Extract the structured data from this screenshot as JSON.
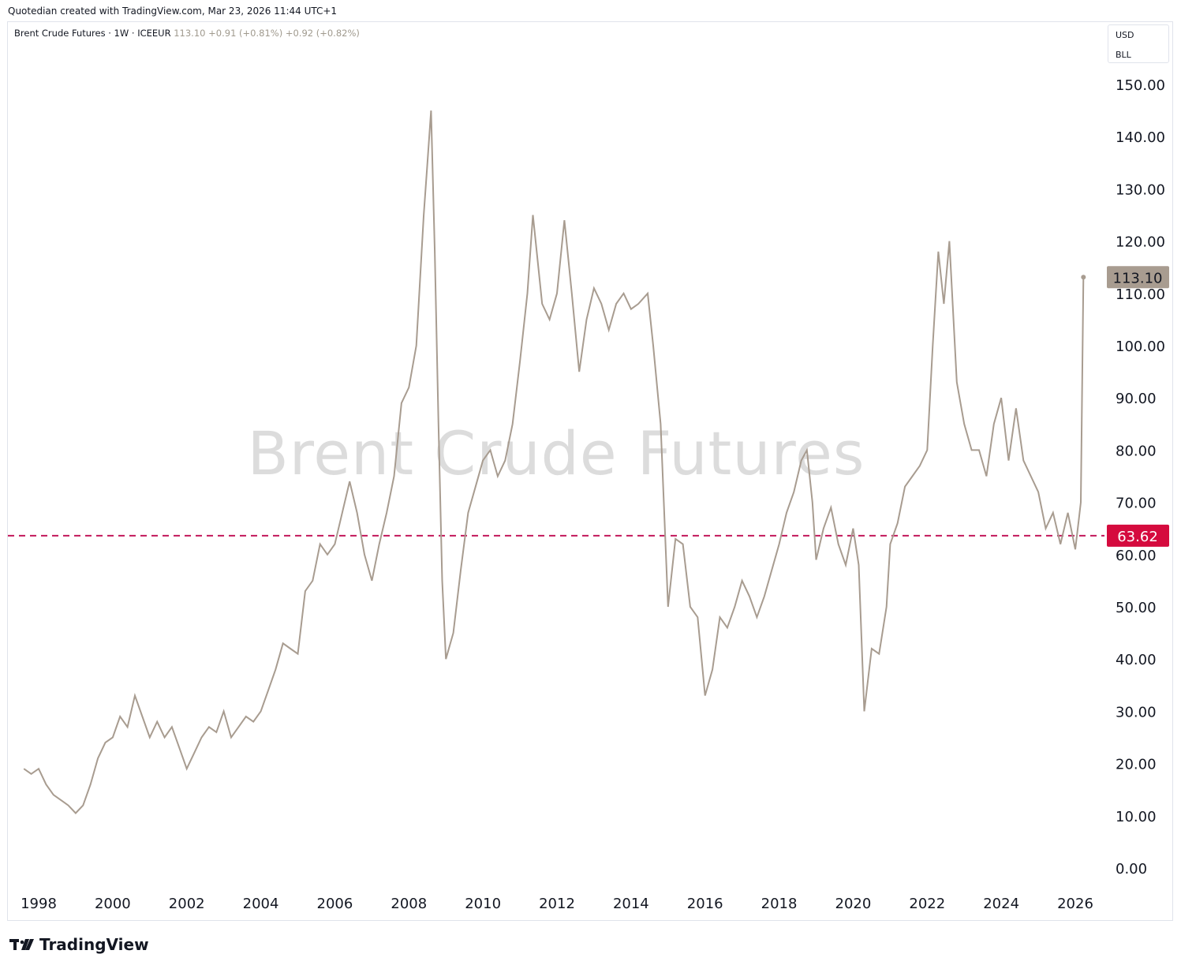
{
  "header": {
    "credit": "Quotedian created with TradingView.com, Mar 23, 2026 11:44 UTC+1"
  },
  "legend": {
    "symbol": "Brent Crude Futures · 1W · ICEEUR",
    "last": "113.10",
    "change1": "+0.91 (+0.81%)",
    "change2": "+0.92 (+0.82%)"
  },
  "units": {
    "currency": "USD",
    "unit": "BLL"
  },
  "watermark": "Brent Crude Futures",
  "brand": {
    "name": "TradingView"
  },
  "colors": {
    "line": "#a89c90",
    "hline": "#c2185b",
    "last_tag": "#a89c90",
    "hline_tag": "#d50b3e"
  },
  "chart_data": {
    "type": "line",
    "series": [
      {
        "x": [
          1997.6,
          1997.8,
          1998.0,
          1998.2,
          1998.4,
          1998.6,
          1998.8,
          1999.0,
          1999.2,
          1999.4,
          1999.6,
          1999.8,
          2000.0,
          2000.2,
          2000.4,
          2000.6,
          2000.8,
          2001.0,
          2001.2,
          2001.4,
          2001.6,
          2001.8,
          2002.0,
          2002.2,
          2002.4,
          2002.6,
          2002.8,
          2003.0,
          2003.2,
          2003.4,
          2003.6,
          2003.8,
          2004.0,
          2004.2,
          2004.4,
          2004.6,
          2004.8,
          2005.0,
          2005.2,
          2005.4,
          2005.6,
          2005.8,
          2006.0,
          2006.2,
          2006.4,
          2006.6,
          2006.8,
          2007.0,
          2007.2,
          2007.4,
          2007.6,
          2007.8,
          2008.0,
          2008.2,
          2008.4,
          2008.5,
          2008.6,
          2008.7,
          2008.8,
          2008.9,
          2009.0,
          2009.2,
          2009.4,
          2009.6,
          2009.8,
          2010.0,
          2010.2,
          2010.4,
          2010.6,
          2010.8,
          2011.0,
          2011.2,
          2011.35,
          2011.6,
          2011.8,
          2012.0,
          2012.2,
          2012.4,
          2012.6,
          2012.8,
          2013.0,
          2013.2,
          2013.4,
          2013.6,
          2013.8,
          2014.0,
          2014.2,
          2014.45,
          2014.6,
          2014.8,
          2015.0,
          2015.2,
          2015.4,
          2015.6,
          2015.8,
          2016.0,
          2016.2,
          2016.4,
          2016.6,
          2016.8,
          2017.0,
          2017.2,
          2017.4,
          2017.6,
          2017.8,
          2018.0,
          2018.2,
          2018.4,
          2018.6,
          2018.75,
          2018.9,
          2019.0,
          2019.2,
          2019.4,
          2019.6,
          2019.8,
          2020.0,
          2020.15,
          2020.3,
          2020.5,
          2020.7,
          2020.9,
          2021.0,
          2021.2,
          2021.4,
          2021.6,
          2021.8,
          2022.0,
          2022.15,
          2022.3,
          2022.45,
          2022.6,
          2022.8,
          2023.0,
          2023.2,
          2023.4,
          2023.6,
          2023.8,
          2024.0,
          2024.2,
          2024.4,
          2024.6,
          2024.8,
          2025.0,
          2025.2,
          2025.4,
          2025.6,
          2025.8,
          2026.0,
          2026.1,
          2026.15,
          2026.22
        ],
        "y": [
          19,
          18,
          19,
          16,
          14,
          13,
          12,
          10.5,
          12,
          16,
          21,
          24,
          25,
          29,
          27,
          33,
          29,
          25,
          28,
          25,
          27,
          23,
          19,
          22,
          25,
          27,
          26,
          30,
          25,
          27,
          29,
          28,
          30,
          34,
          38,
          43,
          42,
          41,
          53,
          55,
          62,
          60,
          62,
          68,
          74,
          68,
          60,
          55,
          62,
          68,
          75,
          89,
          92,
          100,
          125,
          135,
          145,
          118,
          85,
          55,
          40,
          45,
          57,
          68,
          73,
          78,
          80,
          75,
          78,
          85,
          97,
          110,
          125,
          108,
          105,
          110,
          124,
          110,
          95,
          105,
          111,
          108,
          103,
          108,
          110,
          107,
          108,
          110,
          100,
          85,
          50,
          63,
          62,
          50,
          48,
          33,
          38,
          48,
          46,
          50,
          55,
          52,
          48,
          52,
          57,
          62,
          68,
          72,
          78,
          80,
          70,
          59,
          65,
          69,
          62,
          58,
          65,
          58,
          30,
          42,
          41,
          50,
          62,
          66,
          73,
          75,
          77,
          80,
          100,
          118,
          108,
          120,
          93,
          85,
          80,
          80,
          75,
          85,
          90,
          78,
          88,
          78,
          75,
          72,
          65,
          68,
          62,
          68,
          61,
          67,
          70,
          113.1
        ]
      }
    ],
    "x_ticks": [
      "1998",
      "2000",
      "2002",
      "2004",
      "2006",
      "2008",
      "2010",
      "2012",
      "2014",
      "2016",
      "2018",
      "2020",
      "2022",
      "2024",
      "2026"
    ],
    "y_ticks": [
      "0.00",
      "10.00",
      "20.00",
      "30.00",
      "40.00",
      "50.00",
      "60.00",
      "70.00",
      "80.00",
      "90.00",
      "100.00",
      "110.00",
      "120.00",
      "130.00",
      "140.00",
      "150.00"
    ],
    "ylim": [
      0,
      150
    ],
    "xlim": [
      1997.6,
      2026.8
    ],
    "last_value": 113.1,
    "last_label": "113.10",
    "hline_value": 63.62,
    "hline_label": "63.62",
    "grid": false
  }
}
